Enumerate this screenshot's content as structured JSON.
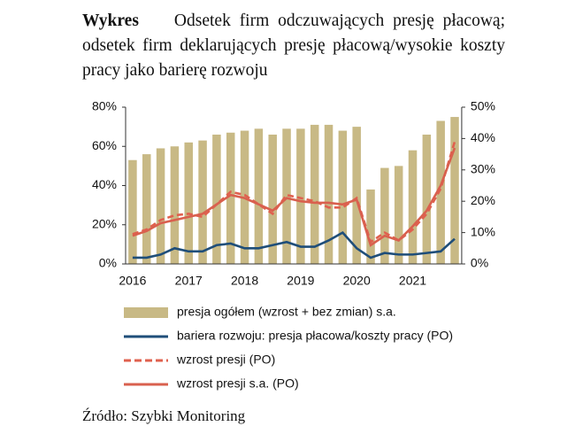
{
  "header": {
    "label": "Wykres",
    "title": "Odsetek firm odczuwających presję płacową; odsetek firm deklarujących presję płacową/wysokie koszty pracy jako barierę rozwoju"
  },
  "chart_data": {
    "type": "bar-line",
    "categories": [
      "2016",
      null,
      null,
      null,
      "2017",
      null,
      null,
      null,
      "2018",
      null,
      null,
      null,
      "2019",
      null,
      null,
      null,
      "2020",
      null,
      null,
      null,
      "2021",
      null,
      null,
      null
    ],
    "series": [
      {
        "name": "presja ogółem (wzrost + bez zmian) s.a.",
        "type": "bar",
        "color": "#c8b985",
        "axis": "y",
        "values": [
          53,
          56,
          59,
          60,
          62,
          63,
          66,
          67,
          68,
          69,
          66,
          69,
          69,
          71,
          71,
          68,
          70,
          38,
          49,
          50,
          58,
          66,
          73,
          75
        ]
      },
      {
        "name": "bariera rozwoju: presja płacowa/koszty pracy (PO)",
        "type": "line",
        "color": "#1f4e79",
        "dashed": false,
        "axis": "y2",
        "values": [
          2,
          2,
          3,
          5,
          4,
          4,
          6,
          6.5,
          5,
          5,
          6,
          7,
          5.5,
          5.5,
          7.5,
          10,
          5,
          2,
          3.5,
          3,
          3,
          3.5,
          4,
          8
        ]
      },
      {
        "name": "wzrost presji (PO)",
        "type": "line",
        "color": "#e0604e",
        "dashed": true,
        "axis": "y2",
        "values": [
          9.5,
          11,
          14,
          15.5,
          16,
          15,
          19,
          23,
          22,
          19,
          16,
          22,
          21,
          20,
          18,
          18,
          21,
          7,
          10,
          7.5,
          11,
          16,
          24,
          39
        ]
      },
      {
        "name": "wzrost presji s.a. (PO)",
        "type": "line",
        "color": "#d9604e",
        "dashed": false,
        "axis": "y2",
        "values": [
          9,
          10.5,
          13,
          14,
          15,
          16,
          19,
          22,
          21,
          19,
          17,
          21,
          20,
          19.5,
          19.5,
          19,
          20.5,
          6,
          9,
          7.5,
          12,
          17,
          25,
          37
        ]
      }
    ],
    "ylim": [
      0,
      80
    ],
    "yticks": [
      {
        "value": 0,
        "label": "0%"
      },
      {
        "value": 20,
        "label": "20%"
      },
      {
        "value": 40,
        "label": "40%"
      },
      {
        "value": 60,
        "label": "60%"
      },
      {
        "value": 80,
        "label": "80%"
      }
    ],
    "y2lim": [
      0,
      50
    ],
    "y2ticks": [
      {
        "value": 0,
        "label": "0%"
      },
      {
        "value": 10,
        "label": "10%"
      },
      {
        "value": 20,
        "label": "20%"
      },
      {
        "value": 30,
        "label": "30%"
      },
      {
        "value": 40,
        "label": "40%"
      },
      {
        "value": 50,
        "label": "50%"
      }
    ],
    "grid": false
  },
  "source": "Źródło: Szybki Monitoring"
}
